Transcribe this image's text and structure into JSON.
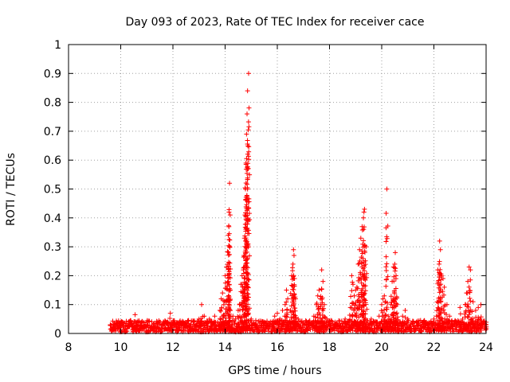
{
  "chart_data": {
    "type": "scatter",
    "title": "Day 093 of 2023, Rate Of TEC Index for receiver cace",
    "xlabel": "GPS time / hours",
    "ylabel": "ROTI / TECUs",
    "xlim": [
      8,
      24
    ],
    "ylim": [
      0,
      1
    ],
    "xticks": [
      8,
      10,
      12,
      14,
      16,
      18,
      20,
      22,
      24
    ],
    "yticks": [
      0,
      0.1,
      0.2,
      0.3,
      0.4,
      0.5,
      0.6,
      0.7,
      0.8,
      0.9,
      1
    ],
    "xtick_labels": [
      "8",
      "10",
      "12",
      "14",
      "16",
      "18",
      "20",
      "22",
      "24"
    ],
    "ytick_labels": [
      "0",
      "0.1",
      "0.2",
      "0.3",
      "0.4",
      "0.5",
      "0.6",
      "0.7",
      "0.8",
      "0.9",
      "1"
    ],
    "grid": true,
    "marker": "+",
    "color": "#ff0000",
    "series": [
      {
        "name": "ROTI",
        "x": [
          9.6,
          9.7,
          9.8,
          9.9,
          10.0,
          10.1,
          10.2,
          10.3,
          10.4,
          10.5,
          10.55,
          10.6,
          10.8,
          11.0,
          11.2,
          11.4,
          11.6,
          11.8,
          11.9,
          12.0,
          12.2,
          12.4,
          12.6,
          12.8,
          13.0,
          13.1,
          13.2,
          13.4,
          13.6,
          13.8,
          13.85,
          13.9,
          13.95,
          14.0,
          14.05,
          14.1,
          14.12,
          14.15,
          14.17,
          14.18,
          14.2,
          14.3,
          14.4,
          14.5,
          14.55,
          14.6,
          14.65,
          14.7,
          14.72,
          14.74,
          14.76,
          14.78,
          14.8,
          14.82,
          14.84,
          14.86,
          14.9,
          15.0,
          15.2,
          15.4,
          15.6,
          15.8,
          15.9,
          16.0,
          16.1,
          16.2,
          16.3,
          16.35,
          16.4,
          16.5,
          16.55,
          16.6,
          16.62,
          16.64,
          16.66,
          16.7,
          16.8,
          16.9,
          17.0,
          17.2,
          17.4,
          17.5,
          17.55,
          17.6,
          17.65,
          17.7,
          17.75,
          17.8,
          17.9,
          18.0,
          18.2,
          18.4,
          18.6,
          18.8,
          18.85,
          18.9,
          18.95,
          19.0,
          19.05,
          19.1,
          19.15,
          19.2,
          19.25,
          19.3,
          19.32,
          19.34,
          19.4,
          19.6,
          19.8,
          19.9,
          20.0,
          20.05,
          20.1,
          20.15,
          20.2,
          20.25,
          20.3,
          20.35,
          20.4,
          20.45,
          20.5,
          20.52,
          20.55,
          20.6,
          20.8,
          20.9,
          21.0,
          21.2,
          21.4,
          21.6,
          21.8,
          22.0,
          22.1,
          22.15,
          22.2,
          22.22,
          22.25,
          22.3,
          22.35,
          22.4,
          22.5,
          22.6,
          22.8,
          23.0,
          23.1,
          23.2,
          23.25,
          23.3,
          23.35,
          23.4,
          23.5,
          23.6,
          23.7,
          23.8,
          23.9,
          24.0
        ],
        "y": [
          0.03,
          0.02,
          0.025,
          0.02,
          0.03,
          0.02,
          0.03,
          0.025,
          0.03,
          0.035,
          0.065,
          0.03,
          0.025,
          0.03,
          0.025,
          0.035,
          0.03,
          0.04,
          0.07,
          0.04,
          0.035,
          0.04,
          0.045,
          0.04,
          0.05,
          0.1,
          0.06,
          0.05,
          0.06,
          0.08,
          0.12,
          0.14,
          0.1,
          0.2,
          0.23,
          0.24,
          0.34,
          0.42,
          0.52,
          0.3,
          0.15,
          0.06,
          0.05,
          0.08,
          0.1,
          0.17,
          0.2,
          0.22,
          0.27,
          0.33,
          0.41,
          0.5,
          0.59,
          0.69,
          0.76,
          0.84,
          0.9,
          0.05,
          0.03,
          0.035,
          0.03,
          0.04,
          0.06,
          0.07,
          0.05,
          0.08,
          0.1,
          0.15,
          0.12,
          0.08,
          0.2,
          0.24,
          0.29,
          0.27,
          0.19,
          0.12,
          0.05,
          0.04,
          0.035,
          0.04,
          0.06,
          0.1,
          0.13,
          0.15,
          0.12,
          0.22,
          0.18,
          0.1,
          0.05,
          0.03,
          0.03,
          0.035,
          0.05,
          0.09,
          0.2,
          0.17,
          0.13,
          0.15,
          0.16,
          0.24,
          0.29,
          0.33,
          0.37,
          0.4,
          0.42,
          0.43,
          0.3,
          0.05,
          0.04,
          0.06,
          0.1,
          0.12,
          0.13,
          0.11,
          0.5,
          0.06,
          0.05,
          0.1,
          0.18,
          0.23,
          0.24,
          0.28,
          0.2,
          0.1,
          0.06,
          0.08,
          0.05,
          0.04,
          0.035,
          0.04,
          0.035,
          0.05,
          0.06,
          0.22,
          0.24,
          0.32,
          0.29,
          0.2,
          0.19,
          0.16,
          0.1,
          0.06,
          0.04,
          0.09,
          0.05,
          0.1,
          0.14,
          0.18,
          0.23,
          0.22,
          0.11,
          0.08,
          0.09,
          0.1,
          0.04,
          0.03
        ]
      }
    ],
    "background_band": {
      "description": "dense low-level points",
      "x_start": 9.6,
      "x_end": 24,
      "y_min": 0.005,
      "y_max": 0.045
    }
  }
}
